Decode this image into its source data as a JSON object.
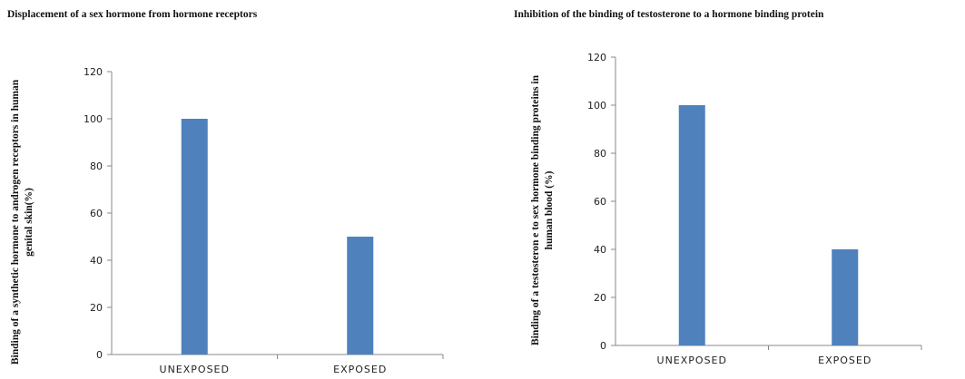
{
  "chart_data": [
    {
      "type": "bar",
      "title": "Displacement of a sex hormone  from hormone receptors",
      "ylabel_lines": [
        "Binding of a synthetic hormone to androgen receptors in human",
        "genital skin(%)"
      ],
      "xlabel": "",
      "categories": [
        "UNEXPOSED",
        "EXPOSED"
      ],
      "values": [
        100,
        50
      ],
      "ylim": [
        0,
        120
      ],
      "yticks": [
        0,
        20,
        40,
        60,
        80,
        100,
        120
      ],
      "bar_color": "#4f81bd",
      "grid": false
    },
    {
      "type": "bar",
      "title": "Inhibition  of the binding of testosterone to a hormone  binding protein",
      "ylabel_lines": [
        "Binding of a testosteron e to sex hormone binding proteins in",
        "human blood (%)"
      ],
      "xlabel": "",
      "categories": [
        "UNEXPOSED",
        "EXPOSED"
      ],
      "values": [
        100,
        40
      ],
      "ylim": [
        0,
        120
      ],
      "yticks": [
        0,
        20,
        40,
        60,
        80,
        100,
        120
      ],
      "bar_color": "#4f81bd",
      "grid": false
    }
  ]
}
